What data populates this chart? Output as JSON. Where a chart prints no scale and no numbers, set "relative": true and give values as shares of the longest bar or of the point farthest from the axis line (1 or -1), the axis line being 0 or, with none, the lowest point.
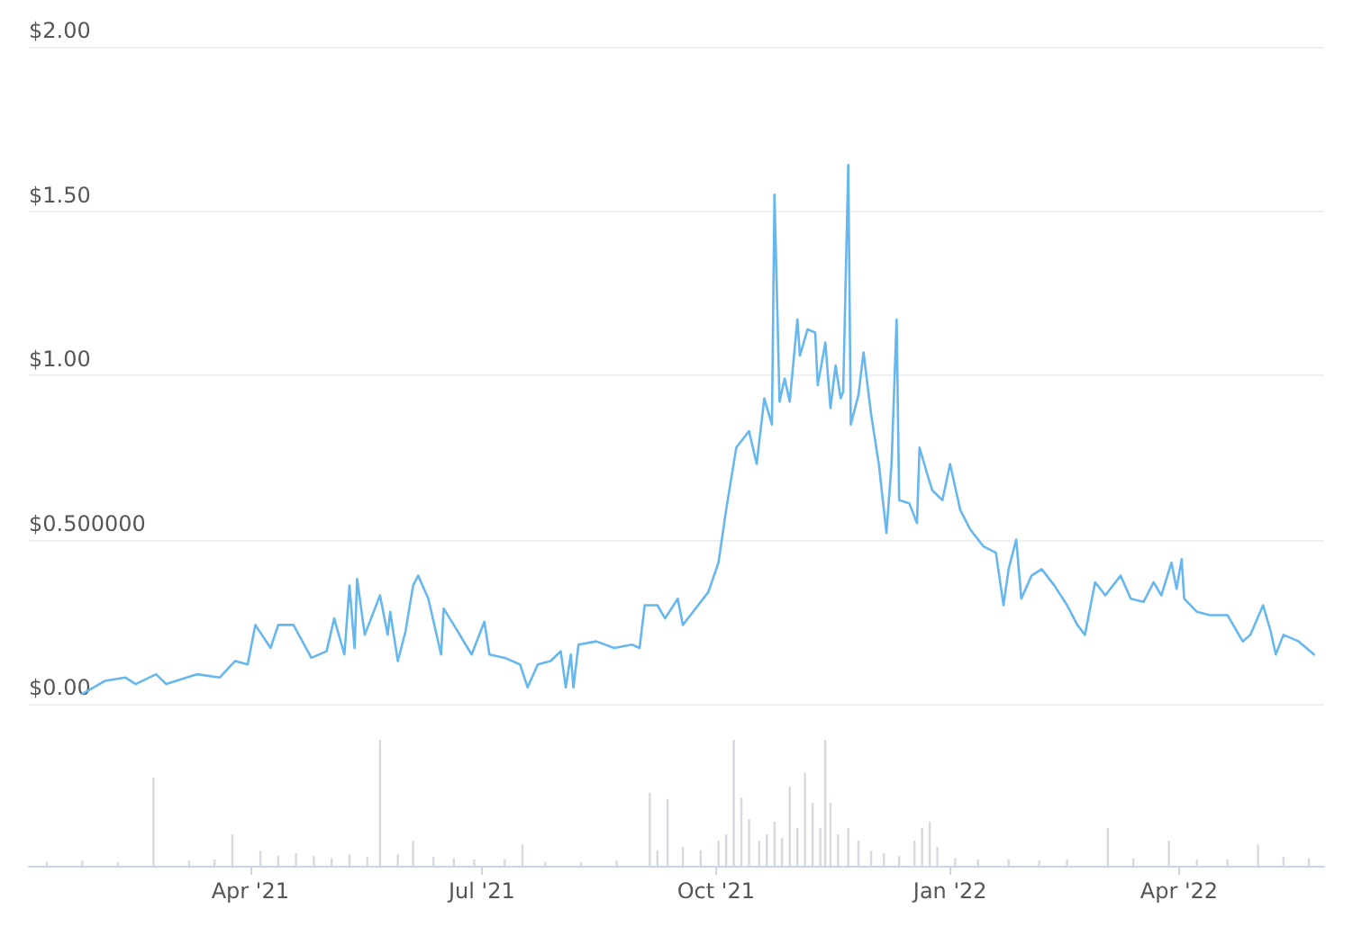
{
  "chart_data": [
    {
      "type": "line",
      "color": "#67b7ef",
      "marker": "none",
      "grid": "y",
      "tick_labels": "y",
      "xlim": [
        "2021-01-04",
        "2022-05-28"
      ],
      "ylim": [
        0,
        2
      ],
      "yticks": [
        {
          "value": 0,
          "label": "$0.00"
        },
        {
          "value": 0.5,
          "label": "$0.500000"
        },
        {
          "value": 1,
          "label": "$1.00"
        },
        {
          "value": 1.5,
          "label": "$1.50"
        },
        {
          "value": 2,
          "label": "$2.00"
        }
      ],
      "x": [
        "2021-01-25",
        "2021-02-03",
        "2021-02-11",
        "2021-02-15",
        "2021-02-23",
        "2021-02-27",
        "2021-03-11",
        "2021-03-20",
        "2021-03-26",
        "2021-03-31",
        "2021-04-03",
        "2021-04-09",
        "2021-04-12",
        "2021-04-18",
        "2021-04-25",
        "2021-05-01",
        "2021-05-04",
        "2021-05-08",
        "2021-05-10",
        "2021-05-12",
        "2021-05-13",
        "2021-05-16",
        "2021-05-22",
        "2021-05-25",
        "2021-05-26",
        "2021-05-29",
        "2021-06-01",
        "2021-06-04",
        "2021-06-06",
        "2021-06-10",
        "2021-06-15",
        "2021-06-16",
        "2021-06-20",
        "2021-06-27",
        "2021-07-02",
        "2021-07-04",
        "2021-07-10",
        "2021-07-16",
        "2021-07-19",
        "2021-07-23",
        "2021-07-28",
        "2021-08-01",
        "2021-08-03",
        "2021-08-05",
        "2021-08-06",
        "2021-08-08",
        "2021-08-15",
        "2021-08-22",
        "2021-08-29",
        "2021-09-01",
        "2021-09-03",
        "2021-09-08",
        "2021-09-11",
        "2021-09-16",
        "2021-09-18",
        "2021-09-24",
        "2021-09-28",
        "2021-10-02",
        "2021-10-05",
        "2021-10-09",
        "2021-10-11",
        "2021-10-14",
        "2021-10-17",
        "2021-10-20",
        "2021-10-23",
        "2021-10-24",
        "2021-10-26",
        "2021-10-28",
        "2021-10-30",
        "2021-11-02",
        "2021-11-03",
        "2021-11-06",
        "2021-11-09",
        "2021-11-10",
        "2021-11-13",
        "2021-11-15",
        "2021-11-17",
        "2021-11-19",
        "2021-11-20",
        "2021-11-22",
        "2021-11-23",
        "2021-11-26",
        "2021-11-28",
        "2021-12-01",
        "2021-12-04",
        "2021-12-07",
        "2021-12-09",
        "2021-12-11",
        "2021-12-12",
        "2021-12-16",
        "2021-12-19",
        "2021-12-20",
        "2021-12-23",
        "2021-12-25",
        "2021-12-29",
        "2022-01-01",
        "2022-01-05",
        "2022-01-09",
        "2022-01-14",
        "2022-01-19",
        "2022-01-22",
        "2022-01-24",
        "2022-01-27",
        "2022-01-29",
        "2022-02-02",
        "2022-02-06",
        "2022-02-11",
        "2022-02-16",
        "2022-02-20",
        "2022-02-23",
        "2022-02-27",
        "2022-03-03",
        "2022-03-09",
        "2022-03-13",
        "2022-03-18",
        "2022-03-22",
        "2022-03-25",
        "2022-03-29",
        "2022-03-31",
        "2022-04-02",
        "2022-04-03",
        "2022-04-08",
        "2022-04-13",
        "2022-04-20",
        "2022-04-26",
        "2022-04-29",
        "2022-05-04",
        "2022-05-07",
        "2022-05-09",
        "2022-05-12",
        "2022-05-18",
        "2022-05-24"
      ],
      "values": [
        0.03,
        0.07,
        0.08,
        0.06,
        0.09,
        0.06,
        0.09,
        0.08,
        0.13,
        0.12,
        0.24,
        0.17,
        0.24,
        0.24,
        0.14,
        0.16,
        0.26,
        0.15,
        0.36,
        0.17,
        0.38,
        0.21,
        0.33,
        0.21,
        0.28,
        0.13,
        0.22,
        0.36,
        0.39,
        0.32,
        0.15,
        0.29,
        0.24,
        0.15,
        0.25,
        0.15,
        0.14,
        0.12,
        0.05,
        0.12,
        0.13,
        0.16,
        0.05,
        0.15,
        0.05,
        0.18,
        0.19,
        0.17,
        0.18,
        0.17,
        0.3,
        0.3,
        0.26,
        0.32,
        0.24,
        0.3,
        0.34,
        0.43,
        0.59,
        0.78,
        0.8,
        0.83,
        0.73,
        0.93,
        0.85,
        1.55,
        0.92,
        0.99,
        0.92,
        1.17,
        1.06,
        1.14,
        1.13,
        0.97,
        1.1,
        0.9,
        1.03,
        0.93,
        0.95,
        1.64,
        0.85,
        0.94,
        1.07,
        0.88,
        0.73,
        0.52,
        0.73,
        1.17,
        0.62,
        0.61,
        0.55,
        0.78,
        0.7,
        0.65,
        0.62,
        0.73,
        0.59,
        0.53,
        0.48,
        0.46,
        0.3,
        0.41,
        0.5,
        0.32,
        0.39,
        0.41,
        0.36,
        0.3,
        0.24,
        0.21,
        0.37,
        0.33,
        0.39,
        0.32,
        0.31,
        0.37,
        0.33,
        0.43,
        0.35,
        0.44,
        0.32,
        0.28,
        0.27,
        0.27,
        0.19,
        0.21,
        0.3,
        0.22,
        0.15,
        0.21,
        0.19,
        0.15
      ]
    },
    {
      "type": "bar",
      "relative": true,
      "color": "#d6d9df",
      "tick_labels": "x",
      "xlim": [
        "2021-01-04",
        "2022-05-28"
      ],
      "xticks": [
        {
          "value": "2021-04-01",
          "label": "Apr '21"
        },
        {
          "value": "2021-07-01",
          "label": "Jul '21"
        },
        {
          "value": "2021-10-01",
          "label": "Oct '21"
        },
        {
          "value": "2022-01-01",
          "label": "Jan '22"
        },
        {
          "value": "2022-04-01",
          "label": "Apr '22"
        }
      ],
      "x": [
        "2021-01-11",
        "2021-01-25",
        "2021-02-08",
        "2021-02-22",
        "2021-03-08",
        "2021-03-18",
        "2021-03-25",
        "2021-04-05",
        "2021-04-12",
        "2021-04-19",
        "2021-04-26",
        "2021-05-03",
        "2021-05-10",
        "2021-05-17",
        "2021-05-22",
        "2021-05-29",
        "2021-06-04",
        "2021-06-12",
        "2021-06-20",
        "2021-06-28",
        "2021-07-10",
        "2021-07-17",
        "2021-07-26",
        "2021-08-09",
        "2021-08-23",
        "2021-09-05",
        "2021-09-08",
        "2021-09-12",
        "2021-09-18",
        "2021-09-25",
        "2021-10-02",
        "2021-10-05",
        "2021-10-08",
        "2021-10-11",
        "2021-10-14",
        "2021-10-18",
        "2021-10-21",
        "2021-10-24",
        "2021-10-27",
        "2021-10-30",
        "2021-11-02",
        "2021-11-05",
        "2021-11-08",
        "2021-11-11",
        "2021-11-13",
        "2021-11-15",
        "2021-11-18",
        "2021-11-22",
        "2021-11-26",
        "2021-12-01",
        "2021-12-06",
        "2021-12-12",
        "2021-12-18",
        "2021-12-21",
        "2021-12-24",
        "2021-12-27",
        "2022-01-03",
        "2022-01-12",
        "2022-01-24",
        "2022-02-05",
        "2022-02-16",
        "2022-03-04",
        "2022-03-14",
        "2022-03-28",
        "2022-04-08",
        "2022-04-20",
        "2022-05-02",
        "2022-05-12",
        "2022-05-22"
      ],
      "values": [
        0.03,
        0.04,
        0.03,
        0.7,
        0.04,
        0.05,
        0.25,
        0.12,
        0.08,
        0.1,
        0.08,
        0.06,
        0.09,
        0.07,
        1.0,
        0.09,
        0.2,
        0.07,
        0.06,
        0.05,
        0.05,
        0.17,
        0.03,
        0.03,
        0.04,
        0.58,
        0.12,
        0.53,
        0.15,
        0.12,
        0.2,
        0.25,
        1.0,
        0.54,
        0.37,
        0.2,
        0.25,
        0.35,
        0.22,
        0.63,
        0.3,
        0.74,
        0.5,
        0.3,
        1.0,
        0.5,
        0.25,
        0.3,
        0.2,
        0.12,
        0.1,
        0.08,
        0.2,
        0.3,
        0.35,
        0.15,
        0.06,
        0.05,
        0.05,
        0.04,
        0.05,
        0.3,
        0.06,
        0.2,
        0.05,
        0.05,
        0.17,
        0.07,
        0.06
      ]
    }
  ]
}
